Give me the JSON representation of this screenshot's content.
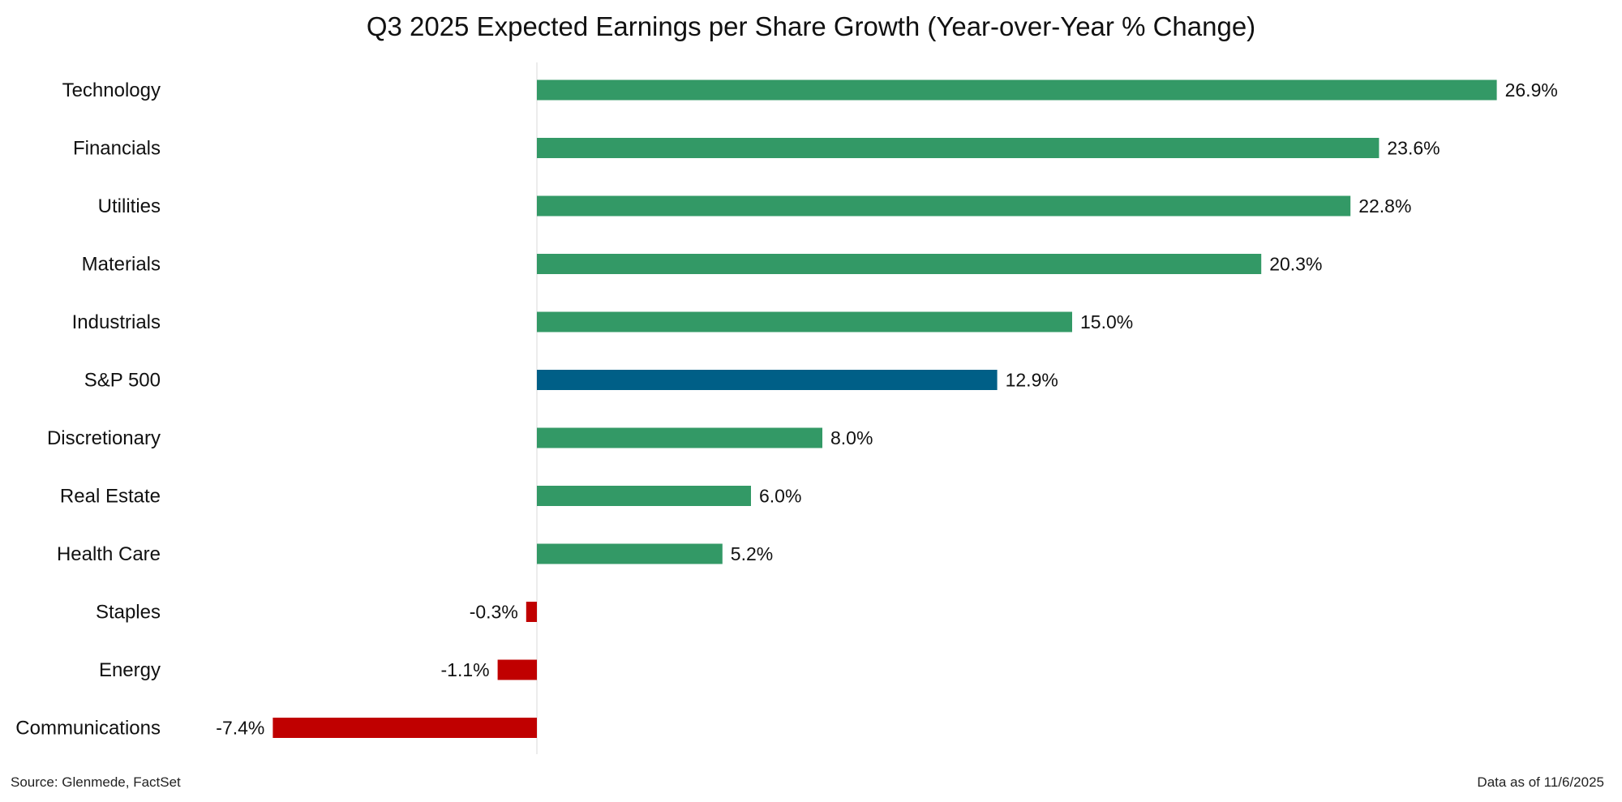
{
  "chart_data": {
    "type": "bar",
    "orientation": "horizontal",
    "title": "Q3 2025 Expected Earnings per Share Growth (Year-over-Year % Change)",
    "xlabel": "",
    "ylabel": "",
    "xlim": [
      -7.4,
      26.9
    ],
    "grid": false,
    "categories": [
      "Technology",
      "Financials",
      "Utilities",
      "Materials",
      "Industrials",
      "S&P 500",
      "Discretionary",
      "Real Estate",
      "Health Care",
      "Staples",
      "Energy",
      "Communications"
    ],
    "values": [
      26.9,
      23.6,
      22.8,
      20.3,
      15.0,
      12.9,
      8.0,
      6.0,
      5.2,
      -0.3,
      -1.1,
      -7.4
    ],
    "labels": [
      "26.9%",
      "23.6%",
      "22.8%",
      "20.3%",
      "15.0%",
      "12.9%",
      "8.0%",
      "6.0%",
      "5.2%",
      "-0.3%",
      "-1.1%",
      "-7.4%"
    ],
    "colors": {
      "positive": "#339966",
      "benchmark": "#005f87",
      "negative": "#c00000",
      "axis": "#d9d9d9"
    },
    "benchmark_category": "S&P 500"
  },
  "footer": {
    "source": "Source: Glenmede, FactSet",
    "date": "Data as of 11/6/2025"
  }
}
